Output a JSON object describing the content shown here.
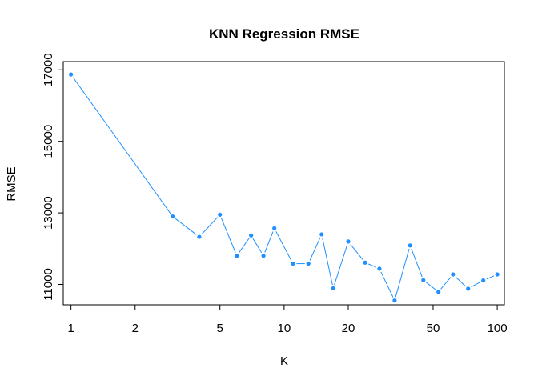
{
  "chart_data": {
    "type": "line",
    "title": "KNN Regression RMSE",
    "xlabel": "K",
    "ylabel": "RMSE",
    "x_scale": "log",
    "xlim": [
      0.92,
      108
    ],
    "ylim": [
      10430,
      17230
    ],
    "x_ticks": [
      1,
      2,
      5,
      10,
      20,
      50,
      100
    ],
    "y_ticks": [
      11000,
      13000,
      15000,
      17000
    ],
    "series": [
      {
        "color": "#1E90FF",
        "points": [
          {
            "x": 1,
            "y": 16870
          },
          {
            "x": 3,
            "y": 12900
          },
          {
            "x": 4,
            "y": 12330
          },
          {
            "x": 5,
            "y": 12950
          },
          {
            "x": 6,
            "y": 11800
          },
          {
            "x": 7,
            "y": 12370
          },
          {
            "x": 8,
            "y": 11800
          },
          {
            "x": 9,
            "y": 12570
          },
          {
            "x": 11,
            "y": 11580
          },
          {
            "x": 13,
            "y": 11580
          },
          {
            "x": 15,
            "y": 12400
          },
          {
            "x": 17,
            "y": 10890
          },
          {
            "x": 20,
            "y": 12200
          },
          {
            "x": 24,
            "y": 11610
          },
          {
            "x": 28,
            "y": 11440
          },
          {
            "x": 33,
            "y": 10550
          },
          {
            "x": 39,
            "y": 12090
          },
          {
            "x": 45,
            "y": 11120
          },
          {
            "x": 53,
            "y": 10790
          },
          {
            "x": 62,
            "y": 11280
          },
          {
            "x": 73,
            "y": 10880
          },
          {
            "x": 86,
            "y": 11110
          },
          {
            "x": 100,
            "y": 11280
          }
        ]
      }
    ]
  }
}
